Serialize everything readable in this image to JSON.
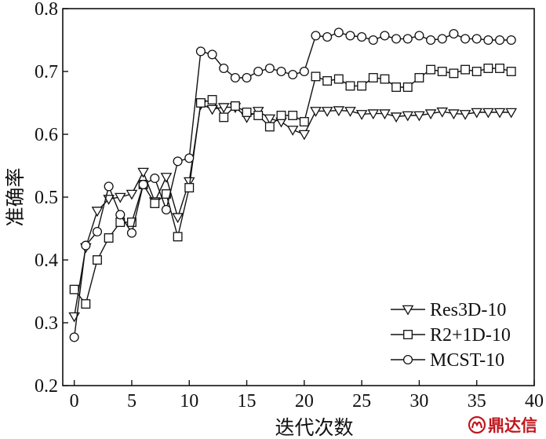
{
  "chart_data": {
    "type": "line",
    "title": "",
    "xlabel": "迭代次数",
    "ylabel": "准确率",
    "xlim": [
      -1,
      40
    ],
    "ylim": [
      0.2,
      0.8
    ],
    "xticks": [
      0,
      5,
      10,
      15,
      20,
      25,
      30,
      35,
      40
    ],
    "yticks": [
      0.2,
      0.3,
      0.4,
      0.5,
      0.6,
      0.7,
      0.8
    ],
    "xtick_labels": [
      "0",
      "5",
      "10",
      "15",
      "20",
      "25",
      "30",
      "35",
      "40"
    ],
    "ytick_labels": [
      "0.2",
      "0.3",
      "0.4",
      "0.5",
      "0.6",
      "0.7",
      "0.8"
    ],
    "grid": false,
    "legend_position": "bottom-right",
    "x": [
      0,
      1,
      2,
      3,
      4,
      5,
      6,
      7,
      8,
      9,
      10,
      11,
      12,
      13,
      14,
      15,
      16,
      17,
      18,
      19,
      20,
      21,
      22,
      23,
      24,
      25,
      26,
      27,
      28,
      29,
      30,
      31,
      32,
      33,
      34,
      35,
      36,
      37,
      38
    ],
    "series": [
      {
        "name": "Res3D-10",
        "marker": "triangle-down",
        "values": [
          0.31,
          0.42,
          0.478,
          0.497,
          0.5,
          0.505,
          0.54,
          0.493,
          0.532,
          0.468,
          0.525,
          0.648,
          0.64,
          0.643,
          0.643,
          0.627,
          0.637,
          0.625,
          0.62,
          0.607,
          0.6,
          0.637,
          0.637,
          0.638,
          0.637,
          0.632,
          0.633,
          0.633,
          0.628,
          0.63,
          0.63,
          0.633,
          0.636,
          0.633,
          0.632,
          0.635,
          0.635,
          0.635,
          0.635
        ]
      },
      {
        "name": "R2+1D-10",
        "marker": "square",
        "values": [
          0.353,
          0.33,
          0.4,
          0.435,
          0.46,
          0.46,
          0.52,
          0.49,
          0.505,
          0.437,
          0.515,
          0.65,
          0.655,
          0.627,
          0.645,
          0.635,
          0.63,
          0.612,
          0.63,
          0.63,
          0.62,
          0.692,
          0.685,
          0.688,
          0.677,
          0.677,
          0.69,
          0.688,
          0.675,
          0.675,
          0.69,
          0.703,
          0.7,
          0.697,
          0.703,
          0.7,
          0.705,
          0.705,
          0.7
        ]
      },
      {
        "name": "MCST-10",
        "marker": "circle",
        "values": [
          0.277,
          0.423,
          0.445,
          0.517,
          0.472,
          0.443,
          0.52,
          0.53,
          0.48,
          0.557,
          0.562,
          0.732,
          0.727,
          0.705,
          0.69,
          0.69,
          0.7,
          0.705,
          0.7,
          0.695,
          0.7,
          0.757,
          0.755,
          0.762,
          0.757,
          0.755,
          0.75,
          0.757,
          0.752,
          0.752,
          0.757,
          0.75,
          0.752,
          0.76,
          0.752,
          0.752,
          0.75,
          0.75,
          0.75
        ]
      }
    ],
    "line_color": "#111111"
  },
  "watermark": {
    "text": "鼎达信",
    "color": "#c0161d",
    "icon": "dingdaxin-logo-icon"
  }
}
